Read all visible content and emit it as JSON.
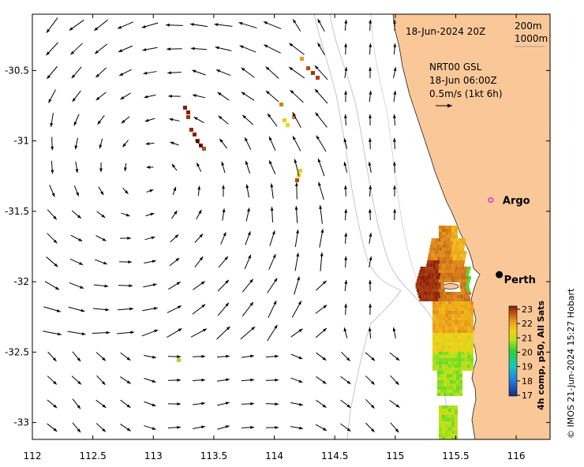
{
  "map": {
    "timestamp": "18-Jun-2024 20Z",
    "depth_label_1": "200m",
    "depth_label_2": "1000m",
    "current_source": "NRT00 GSL",
    "current_time": "18-Jun 06:00Z",
    "scale_label": "0.5m/s (1kt 6h)",
    "longitude_ticks": [
      "112",
      "112.5",
      "113",
      "113.5",
      "114",
      "114.5",
      "115",
      "115.5",
      "116"
    ],
    "longitude_values": [
      112,
      112.5,
      113,
      113.5,
      114,
      114.5,
      115,
      115.5,
      116
    ],
    "latitude_ticks": [
      "-30.5",
      "-31",
      "-31.5",
      "-32",
      "-32.5",
      "-33"
    ],
    "latitude_values": [
      -30.5,
      -31,
      -31.5,
      -32,
      -32.5,
      -33
    ],
    "lon_range": [
      112,
      116.28
    ],
    "lat_range": [
      -33.12,
      -30.1
    ],
    "places": [
      {
        "label": "Perth",
        "lon": 115.86,
        "lat": -31.95,
        "marker": "dot"
      },
      {
        "label": "Argo",
        "lon": 115.79,
        "lat": -31.42,
        "marker": "ring"
      }
    ],
    "eddy_center": {
      "lon": 112.95,
      "lat": -31.25
    },
    "colors": {
      "land": "#fac898",
      "coastline": "#222222",
      "argo_ring": "#e020e0",
      "isobath": "#b8b8b8"
    }
  },
  "colorbar": {
    "ticks": [
      "23",
      "22",
      "21",
      "20",
      "19",
      "18",
      "17"
    ],
    "values": [
      23,
      22,
      21,
      20,
      19,
      18,
      17
    ],
    "label": "4h comp, p50, All Sats"
  },
  "credit": "© IMOS 21-Jun-2024 15:27 Hobart"
}
